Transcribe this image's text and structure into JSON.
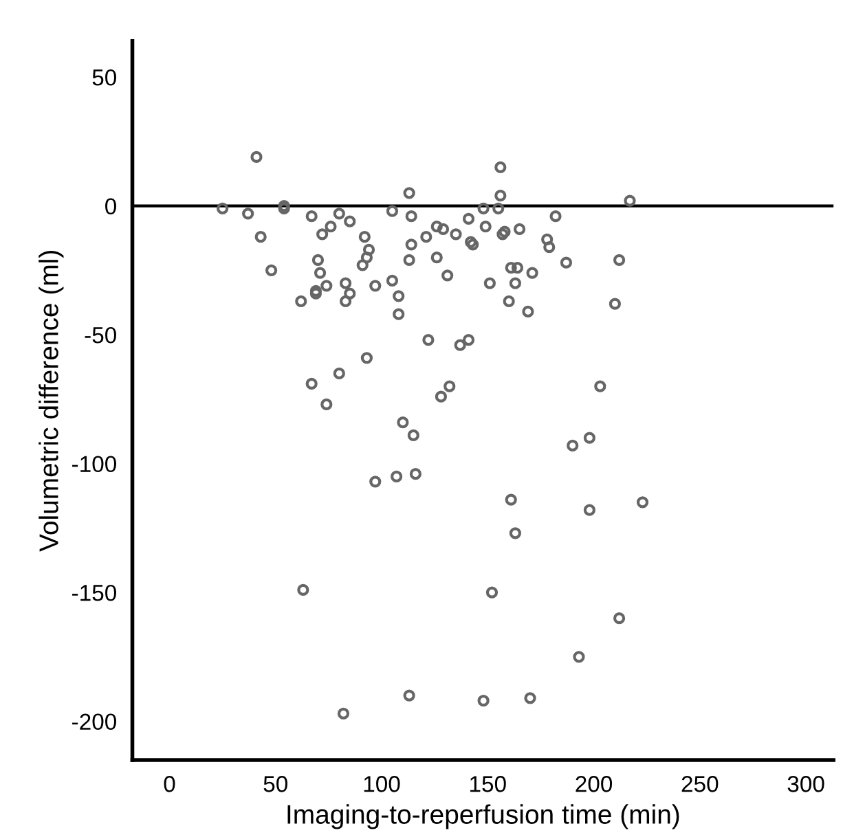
{
  "chart_data": {
    "type": "scatter",
    "xlabel": "Imaging-to-reperfusion time (min)",
    "ylabel": "Volumetric difference (ml)",
    "x": [
      25,
      37,
      41,
      43,
      48,
      54,
      54,
      67,
      80,
      85,
      76,
      72,
      70,
      71,
      62,
      69,
      69,
      74,
      83,
      85,
      83,
      91,
      92,
      94,
      97,
      93,
      93,
      80,
      67,
      105,
      113,
      114,
      114,
      113,
      105,
      108,
      108,
      121,
      126,
      129,
      126,
      131,
      135,
      141,
      142,
      143,
      148,
      149,
      155,
      156,
      156,
      158,
      157,
      165,
      151,
      161,
      164,
      163,
      171,
      160,
      169,
      178,
      179,
      182,
      187,
      212,
      210,
      217,
      122,
      141,
      137,
      132,
      128,
      203,
      74,
      110,
      115,
      190,
      198,
      97,
      107,
      116,
      161,
      163,
      198,
      223,
      63,
      152,
      212,
      193,
      113,
      148,
      170,
      82
    ],
    "values": [
      -1,
      -3,
      19,
      -12,
      -25,
      0,
      -1,
      -4,
      -3,
      -6,
      -8,
      -11,
      -21,
      -26,
      -37,
      -33,
      -34,
      -31,
      -30,
      -34,
      -37,
      -23,
      -12,
      -17,
      -31,
      -20,
      -59,
      -65,
      -69,
      -2,
      5,
      -4,
      -15,
      -21,
      -29,
      -35,
      -42,
      -12,
      -8,
      -9,
      -20,
      -27,
      -11,
      -5,
      -14,
      -15,
      -1,
      -8,
      -1,
      15,
      4,
      -10,
      -11,
      -9,
      -30,
      -24,
      -24,
      -30,
      -26,
      -37,
      -41,
      -13,
      -16,
      -4,
      -22,
      -21,
      -38,
      2,
      -52,
      -52,
      -54,
      -70,
      -74,
      -70,
      -77,
      -84,
      -89,
      -93,
      -90,
      -107,
      -105,
      -104,
      -114,
      -127,
      -118,
      -115,
      -149,
      -150,
      -160,
      -175,
      -190,
      -192,
      -191,
      -197
    ],
    "color": "#666666",
    "marker": "circle",
    "xlim": [
      -17.5,
      313
    ],
    "ylim": [
      -215,
      64
    ],
    "xticks": [
      0,
      50,
      100,
      150,
      200,
      250,
      300
    ],
    "yticks": [
      -200,
      -150,
      -100,
      -50,
      0,
      50
    ],
    "ref_lines": [
      {
        "axis": "y",
        "value": 0,
        "color": "#000000"
      }
    ],
    "grid": false,
    "legend": false
  }
}
